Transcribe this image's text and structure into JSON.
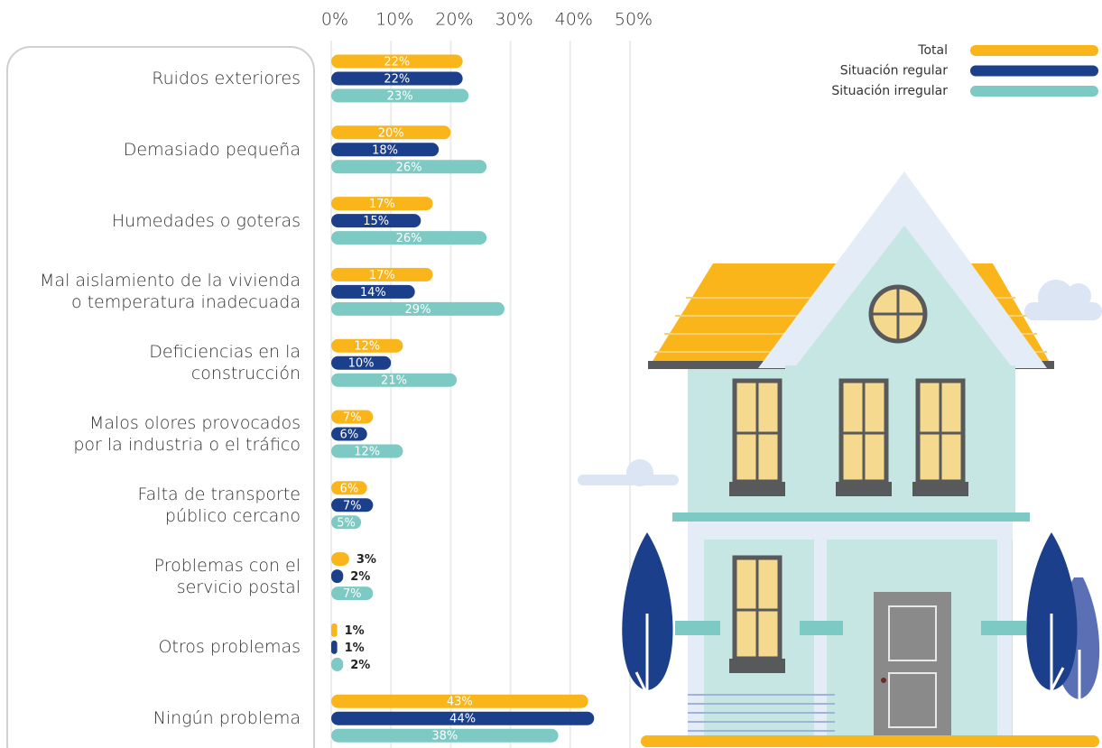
{
  "chart_data": {
    "type": "bar",
    "orientation": "horizontal",
    "categories": [
      "Ruidos exteriores",
      "Demasiado pequeña",
      "Humedades o goteras",
      "Mal aislamiento de la vivienda\no temperatura inadecuada",
      "Deficiencias en la\nconstrucción",
      "Malos olores provocados\npor la industria o el tráfico",
      "Falta de transporte\npúblico cercano",
      "Problemas con el\nservicio postal",
      "Otros problemas",
      "Ningún problema"
    ],
    "series": [
      {
        "name": "Total",
        "color": "#f9b51a",
        "values": [
          22,
          20,
          17,
          17,
          12,
          7,
          6,
          3,
          1,
          43
        ],
        "value_labels": [
          "22%",
          "20%",
          "17%",
          "17%",
          "12%",
          "7%",
          "6%",
          "3%",
          "1%",
          "43%"
        ]
      },
      {
        "name": "Situación regular",
        "color": "#1b3f8b",
        "values": [
          22,
          18,
          15,
          14,
          10,
          6,
          7,
          2,
          1,
          44
        ],
        "value_labels": [
          "22%",
          "18%",
          "15%",
          "14%",
          "10%",
          "6%",
          "7%",
          "2%",
          "1%",
          "44%"
        ]
      },
      {
        "name": "Situación irregular",
        "color": "#7ccac3",
        "values": [
          23,
          26,
          26,
          29,
          21,
          12,
          5,
          7,
          2,
          38
        ],
        "value_labels": [
          "23%",
          "26%",
          "26%",
          "29%",
          "21%",
          "12%",
          "5%",
          "7%",
          "2%",
          "38%"
        ]
      }
    ],
    "xlim": [
      0,
      50
    ],
    "xticks": [
      {
        "value": 0,
        "label": "0%"
      },
      {
        "value": 10,
        "label": "10%"
      },
      {
        "value": 20,
        "label": "20%"
      },
      {
        "value": 30,
        "label": "30%"
      },
      {
        "value": 40,
        "label": "40%"
      },
      {
        "value": 50,
        "label": "50%"
      }
    ],
    "grid": true,
    "legend": "top-right"
  }
}
